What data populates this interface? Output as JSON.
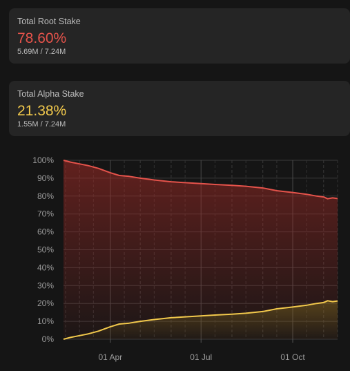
{
  "root_card": {
    "label": "Total Root Stake",
    "percent": "78.60%",
    "detail": "5.69M / 7.24M",
    "color": "#e5534b"
  },
  "alpha_card": {
    "label": "Total Alpha Stake",
    "percent": "21.38%",
    "detail": "1.55M / 7.24M",
    "color": "#f2c94c"
  },
  "chart_data": {
    "type": "area",
    "y_ticks": [
      "0%",
      "10%",
      "20%",
      "30%",
      "40%",
      "50%",
      "60%",
      "70%",
      "80%",
      "90%",
      "100%"
    ],
    "x_ticks": [
      {
        "label": "01 Apr",
        "date": "2025-04-01"
      },
      {
        "label": "01 Jul",
        "date": "2025-07-01"
      },
      {
        "label": "01 Oct",
        "date": "2025-10-01"
      }
    ],
    "x_range": [
      "2025-02-13",
      "2025-11-15"
    ],
    "ylim": [
      0,
      100
    ],
    "grid": true,
    "series": [
      {
        "color": "#e5534b",
        "points": [
          [
            "2025-02-13",
            100
          ],
          [
            "2025-02-20",
            99
          ],
          [
            "2025-03-01",
            98
          ],
          [
            "2025-03-10",
            97
          ],
          [
            "2025-03-20",
            95.5
          ],
          [
            "2025-04-01",
            93
          ],
          [
            "2025-04-10",
            91.5
          ],
          [
            "2025-04-20",
            91
          ],
          [
            "2025-05-01",
            90
          ],
          [
            "2025-05-15",
            89
          ],
          [
            "2025-06-01",
            88
          ],
          [
            "2025-06-15",
            87.5
          ],
          [
            "2025-07-01",
            87
          ],
          [
            "2025-07-15",
            86.5
          ],
          [
            "2025-08-01",
            86
          ],
          [
            "2025-08-15",
            85.5
          ],
          [
            "2025-09-01",
            84.5
          ],
          [
            "2025-09-15",
            83
          ],
          [
            "2025-10-01",
            82
          ],
          [
            "2025-10-15",
            81
          ],
          [
            "2025-10-25",
            80
          ],
          [
            "2025-11-01",
            79.5
          ],
          [
            "2025-11-05",
            78.5
          ],
          [
            "2025-11-10",
            79
          ],
          [
            "2025-11-15",
            78.6
          ]
        ]
      },
      {
        "color": "#f2c94c",
        "points": [
          [
            "2025-02-13",
            0
          ],
          [
            "2025-02-20",
            1
          ],
          [
            "2025-03-01",
            2
          ],
          [
            "2025-03-10",
            3
          ],
          [
            "2025-03-20",
            4.5
          ],
          [
            "2025-04-01",
            7
          ],
          [
            "2025-04-10",
            8.5
          ],
          [
            "2025-04-20",
            9
          ],
          [
            "2025-05-01",
            10
          ],
          [
            "2025-05-15",
            11
          ],
          [
            "2025-06-01",
            12
          ],
          [
            "2025-06-15",
            12.5
          ],
          [
            "2025-07-01",
            13
          ],
          [
            "2025-07-15",
            13.5
          ],
          [
            "2025-08-01",
            14
          ],
          [
            "2025-08-15",
            14.5
          ],
          [
            "2025-09-01",
            15.5
          ],
          [
            "2025-09-15",
            17
          ],
          [
            "2025-10-01",
            18
          ],
          [
            "2025-10-15",
            19
          ],
          [
            "2025-10-25",
            20
          ],
          [
            "2025-11-01",
            20.5
          ],
          [
            "2025-11-05",
            21.5
          ],
          [
            "2025-11-10",
            21
          ],
          [
            "2025-11-15",
            21.4
          ]
        ]
      }
    ]
  }
}
